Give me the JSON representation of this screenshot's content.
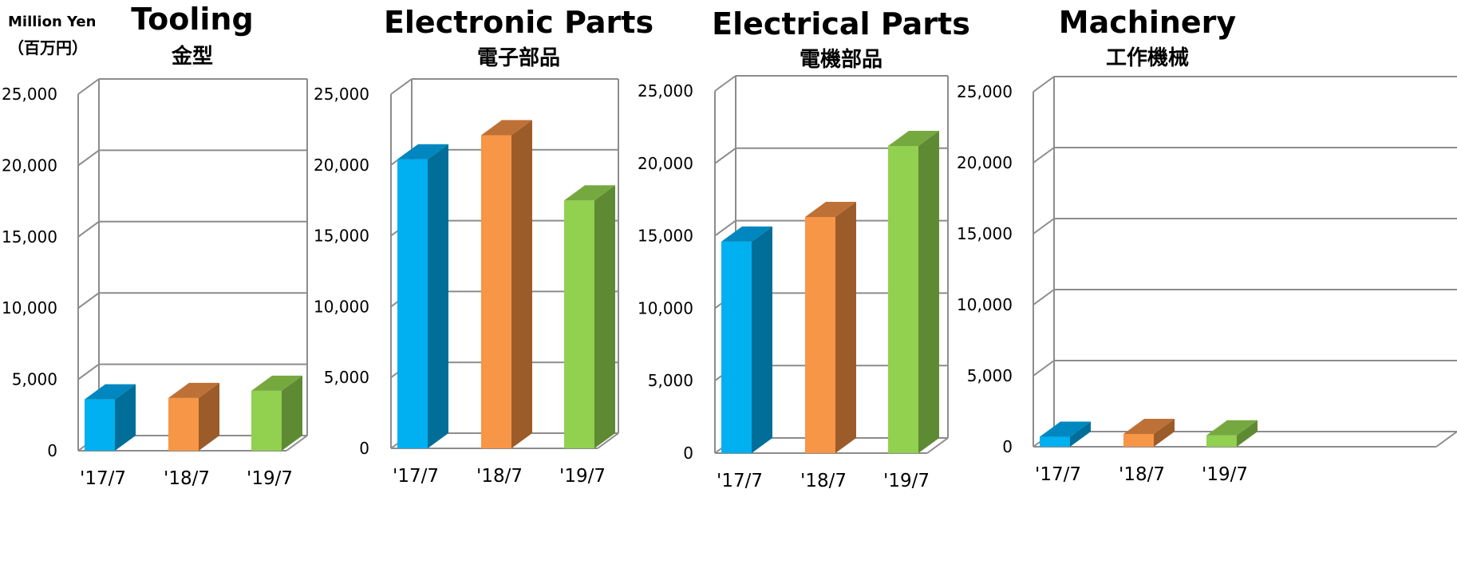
{
  "unit_label": {
    "en": "Million Yen",
    "jp": "（百万円）"
  },
  "colors": {
    "grid": "#8c8c8c",
    "series": [
      {
        "front": "#00B0F0",
        "side": "#006E98",
        "top": "#0087C0"
      },
      {
        "front": "#F79646",
        "side": "#9B5C2A",
        "top": "#BE7136"
      },
      {
        "front": "#92D050",
        "side": "#5E8A34",
        "top": "#76A840"
      }
    ]
  },
  "chart_data": [
    {
      "type": "bar",
      "title": "Tooling",
      "subtitle": "金型",
      "categories": [
        "'17/7",
        "'18/7",
        "'19/7"
      ],
      "values": [
        3600,
        3700,
        4200
      ],
      "ylim": [
        0,
        25000
      ],
      "yticks": [
        "0",
        "5,000",
        "10,000",
        "15,000",
        "20,000",
        "25,000"
      ],
      "grid": true
    },
    {
      "type": "bar",
      "title": "Electronic Parts",
      "subtitle": "電子部品",
      "categories": [
        "'17/7",
        "'18/7",
        "'19/7"
      ],
      "values": [
        20400,
        22100,
        17500
      ],
      "ylim": [
        0,
        25000
      ],
      "yticks": [
        "0",
        "5,000",
        "10,000",
        "15,000",
        "20,000",
        "25,000"
      ],
      "grid": true
    },
    {
      "type": "bar",
      "title": "Electrical Parts",
      "subtitle": "電機部品",
      "categories": [
        "'17/7",
        "'18/7",
        "'19/7"
      ],
      "values": [
        14600,
        16300,
        21200
      ],
      "ylim": [
        0,
        25000
      ],
      "yticks": [
        "0",
        "5,000",
        "10,000",
        "15,000",
        "20,000",
        "25,000"
      ],
      "grid": true
    },
    {
      "type": "bar",
      "title": "Machinery",
      "subtitle": "工作機械",
      "categories": [
        "'17/7",
        "'18/7",
        "'19/7"
      ],
      "values": [
        700,
        900,
        800
      ],
      "ylim": [
        0,
        25000
      ],
      "yticks": [
        "0",
        "5,000",
        "10,000",
        "15,000",
        "20,000",
        "25,000"
      ],
      "grid": true
    }
  ]
}
